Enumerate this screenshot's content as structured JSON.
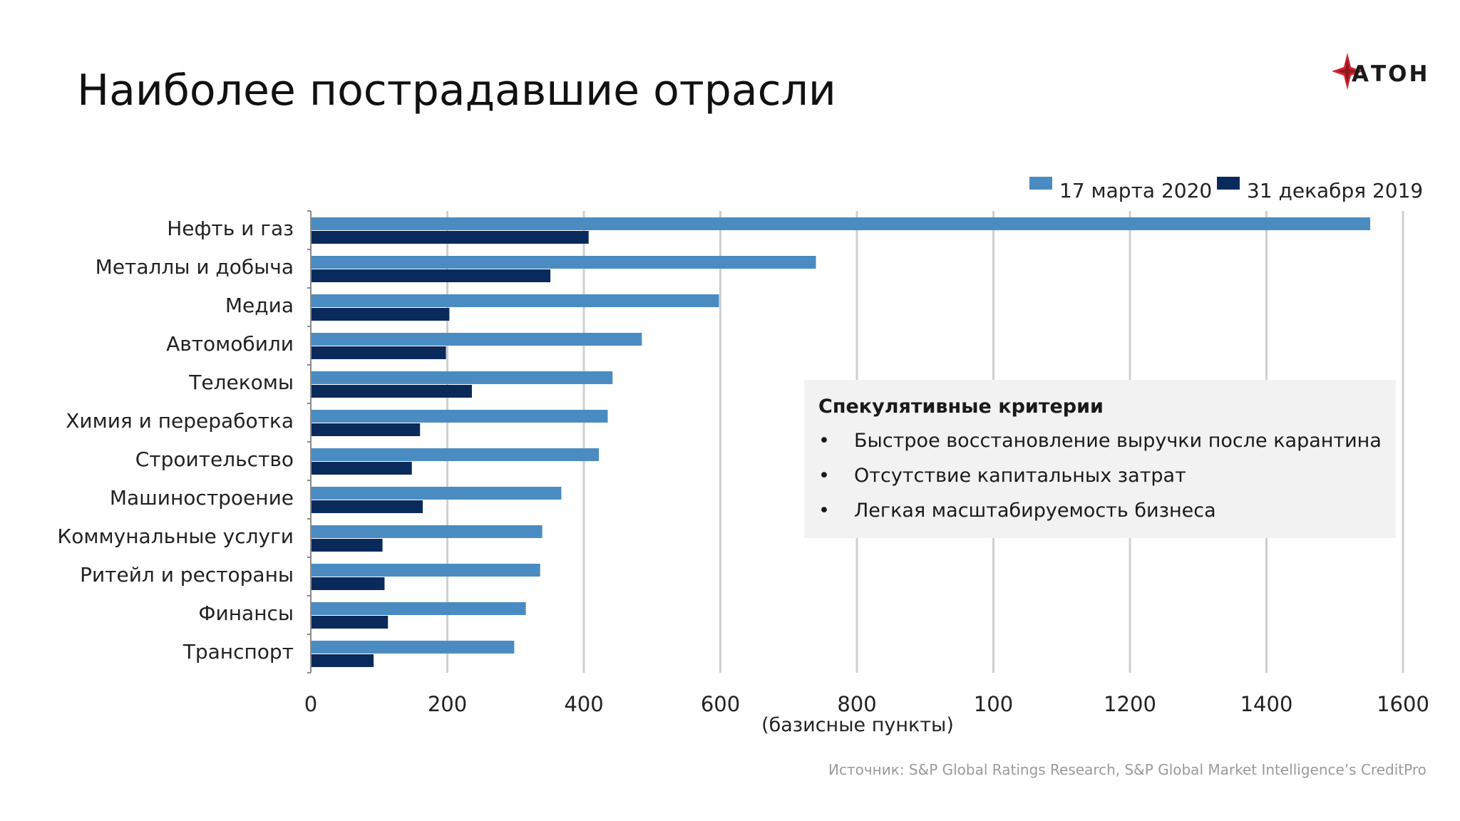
{
  "title": "Наиболее пострадавшие отрасли",
  "logo": {
    "text": "АТОН",
    "accent_color": "#d6232e"
  },
  "colors": {
    "series_2020": "#4a8cc2",
    "series_2019": "#0b2a5c",
    "grid": "#cfcfcf",
    "box_bg": "#f2f2f2"
  },
  "chart_data": {
    "type": "bar",
    "orientation": "horizontal",
    "categories": [
      "Нефть и газ",
      "Металлы и добыча",
      "Медиа",
      "Автомобили",
      "Телекомы",
      "Химия и переработка",
      "Строительство",
      "Машиностроение",
      "Коммунальные услуги",
      "Ритейл и рестораны",
      "Финансы",
      "Транспорт"
    ],
    "series": [
      {
        "name": "17 марта 2020",
        "color": "#4a8cc2",
        "values": [
          1552,
          740,
          598,
          485,
          442,
          435,
          422,
          367,
          339,
          336,
          315,
          298
        ]
      },
      {
        "name": "31 декабря 2019",
        "color": "#0b2a5c",
        "values": [
          407,
          351,
          203,
          198,
          236,
          160,
          148,
          164,
          105,
          108,
          113,
          92
        ]
      }
    ],
    "xticks": [
      "0",
      "200",
      "400",
      "600",
      "800",
      "100",
      "1200",
      "1400",
      "1600"
    ],
    "xlim": [
      0,
      1600
    ],
    "xlabel": "(базисные пункты)",
    "legend_position": "top-right",
    "grid": true
  },
  "box": {
    "title": "Спекулятивные критерии",
    "bullet": "•",
    "items": [
      "Быстрое восстановление выручки после карантина",
      "Отсутствие капитальных затрат",
      "Легкая масштабируемость бизнеса"
    ]
  },
  "source": "Источник: S&P Global Ratings Research, S&P Global Market Intelligence’s CreditPro"
}
